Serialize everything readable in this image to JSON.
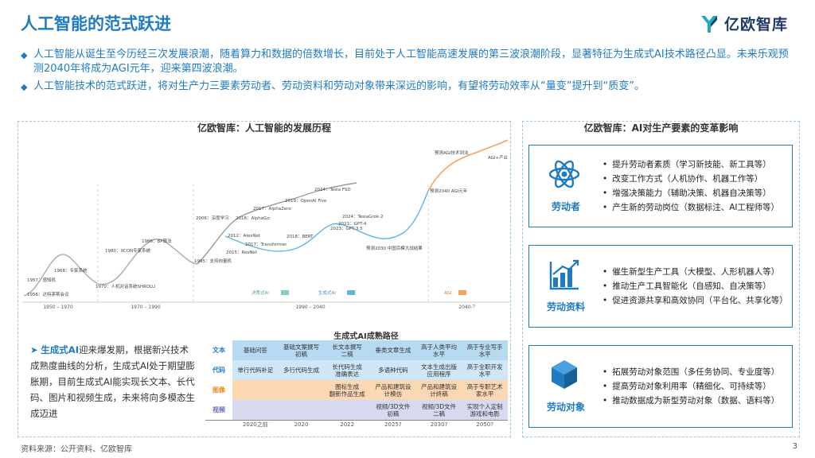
{
  "header": {
    "title": "人工智能的范式跃进",
    "logo_text": "亿欧智库"
  },
  "bullets": [
    "人工智能从诞生至今历经三次发展浪潮，随着算力和数据的倍数增长，目前处于人工智能高速发展的第三波浪潮阶段，显著特征为生成式AI技术路径凸显。未来乐观预测2040年将成为AGI元年，迎来第四波浪潮。",
    "人工智能技术的范式跃进，将对生产力三要素劳动者、劳动资料和劳动对象带来深远的影响，有望将劳动效率从“量变”提升到“质变”。"
  ],
  "left_panel": {
    "title": "亿欧智库：人工智能的发展历程",
    "timeline": {
      "periods": [
        "1950 – 1970",
        "1970 – 1990",
        "1990 – 2040",
        "2040-？"
      ],
      "legend": [
        {
          "label": "决策式AI",
          "color": "#7fd1c7"
        },
        {
          "label": "生成式AI",
          "color": "#5fb5e8"
        },
        {
          "label": "AGI",
          "color": "#f5a25d"
        }
      ],
      "events": [
        "1956：达特茅斯会议",
        "1957：感知机",
        "1968：专家系统",
        "1970：人机对话系统SHRDLU",
        "1980：XCON专家系统",
        "1986：BP算法",
        "1995：支持向量机",
        "2006：深度学习",
        "2012：AlexNet",
        "2015：ResNet",
        "2016：AlphaGo",
        "2017：AlphaZero",
        "2017：Transformer",
        "2018：BERT",
        "2019：OpenAI Five",
        "2023：GPT-3.5",
        "2023：GPT-4",
        "2024：Tesla FSD",
        "2024：TeslaGrok-2",
        "预测2030 中国百模大战结果",
        "预测2040 AGI元年",
        "预测AGI技术到法",
        "AGI+产业"
      ]
    },
    "note": {
      "highlight": "生成式AI",
      "text": "迎来爆发期，根据新兴技术成熟度曲线的分析，生成式AI处于期望膨胀期，目前生成式AI能实现长文本、长代码、图片和视频生成，未来将向多模态生成迈进"
    },
    "roadmap": {
      "title": "生成式AI成熟路径",
      "rows": [
        {
          "label": "文本",
          "label_color": "#1f7bc1",
          "cells": [
            "基础问答",
            "基础文案撰写\n初稿",
            "长文本撰写\n二稿",
            "垂类文章生成",
            "高于人类平均\n水平",
            "高于专业写手\n水平"
          ]
        },
        {
          "label": "代码",
          "label_color": "#1f7bc1",
          "cells": [
            "单行代码补足",
            "多行代码生成",
            "长代码生成\n准确表达",
            "多语种代码",
            "文本生成出版\n应用程序",
            "高于全职开发\n水平"
          ]
        },
        {
          "label": "图像",
          "label_color": "#f08a24",
          "cells": [
            "",
            "",
            "图标生成\n翻新作品生成",
            "产品和建筑设\n计模仿",
            "产品和建筑设\n计终稿",
            "高于专职艺术\n家水平"
          ]
        },
        {
          "label": "视频",
          "label_color": "#6a6fb8",
          "cells": [
            "",
            "",
            "",
            "视频/3D文件\n初稿",
            "视频/3D文件\n二稿",
            "实现个人定制\n游戏和电影"
          ]
        }
      ],
      "years": [
        "2020之前",
        "2020",
        "2022",
        "2025?",
        "2030?",
        "2050?"
      ]
    }
  },
  "right_panel": {
    "title": "亿欧智库：AI对生产要素的变革影响",
    "cards": [
      {
        "name": "劳动者",
        "icon": "atom-icon",
        "items": [
          "提升劳动者素质（学习新技能、新工具等）",
          "改变工作方式（人机协作、机器工作等）",
          "增强决策能力（辅助决策、机器自决策等）",
          "产生新的劳动岗位（数据标注、AI工程师等）"
        ]
      },
      {
        "name": "劳动资料",
        "icon": "chart-icon",
        "items": [
          "催生新型生产工具（大模型、人形机器人等）",
          "推动生产工具智能化（自感知、自决策等）",
          "促进资源共享和高效协同（平台化、共享化等）"
        ]
      },
      {
        "name": "劳动对象",
        "icon": "cube-icon",
        "items": [
          "拓展劳动对象范围（多任务协同、专业度等）",
          "提高劳动对象利用率（精细化、可持续等）",
          "推动数据成为新型劳动对象（数据、语料等）"
        ]
      }
    ]
  },
  "footer": {
    "source": "资料来源：公开资料、亿欧智库",
    "page": "3"
  }
}
